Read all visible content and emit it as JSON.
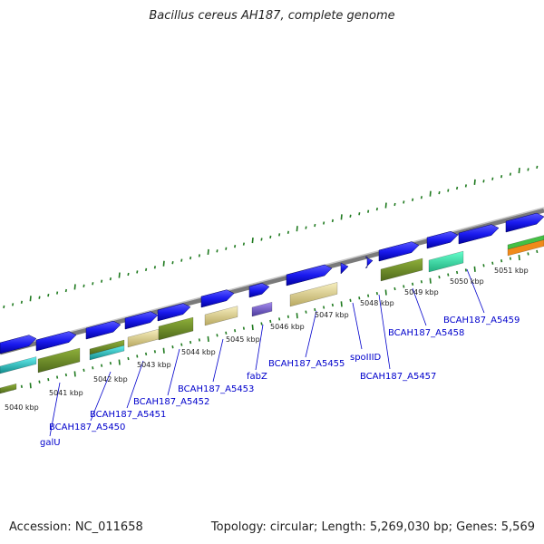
{
  "title": "Bacillus cereus AH187, complete genome",
  "footer": {
    "accession": "Accession: NC_011658",
    "topology": "Topology: circular; Length: 5,269,030 bp; Genes: 5,569"
  },
  "colors": {
    "axis": "#8a8a8a",
    "tick": "#1f7a1f",
    "label": "#0000cc",
    "gene_blue": "#1a1aee",
    "cds_olive": "#6b8a2a",
    "cds_yellow": "#efe4a4",
    "cyan": "#33d6d6",
    "aqua": "#33e6b3",
    "purple": "#7a5ccc",
    "green": "#44c044",
    "orange": "#f08a1a"
  },
  "kbp_labels": [
    {
      "text": "5040 kbp"
    },
    {
      "text": "5041 kbp"
    },
    {
      "text": "5042 kbp"
    },
    {
      "text": "5043 kbp"
    },
    {
      "text": "5044 kbp"
    },
    {
      "text": "5045 kbp"
    },
    {
      "text": "5046 kbp"
    },
    {
      "text": "5047 kbp"
    },
    {
      "text": "5048 kbp"
    },
    {
      "text": "5049 kbp"
    },
    {
      "text": "5050 kbp"
    },
    {
      "text": "5051 kbp"
    }
  ],
  "gene_labels": [
    {
      "text": "galU"
    },
    {
      "text": "BCAH187_A5450"
    },
    {
      "text": "BCAH187_A5451"
    },
    {
      "text": "BCAH187_A5452"
    },
    {
      "text": "BCAH187_A5453"
    },
    {
      "text": "fabZ"
    },
    {
      "text": "BCAH187_A5455"
    },
    {
      "text": "spoIIID"
    },
    {
      "text": "BCAH187_A5457"
    },
    {
      "text": "BCAH187_A5458"
    },
    {
      "text": "BCAH187_A5459"
    }
  ]
}
